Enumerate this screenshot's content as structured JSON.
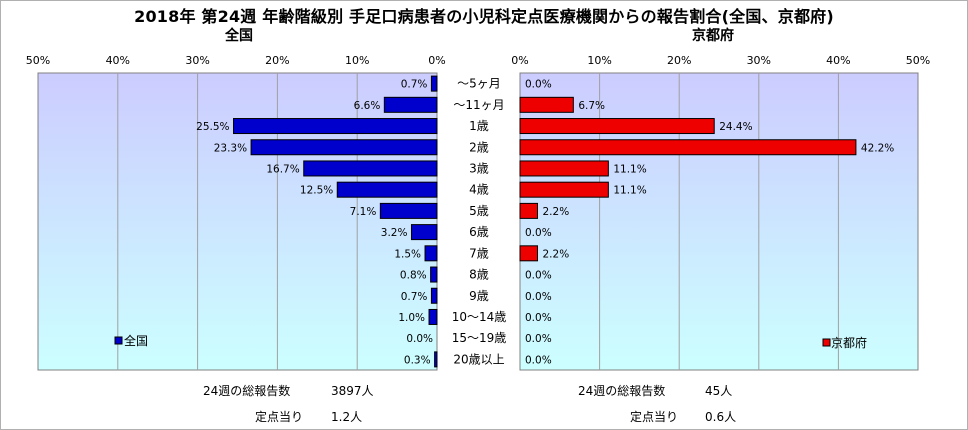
{
  "title": "2018年 第24週 年齢階級別 手足口病患者の小児科定点医療機関からの報告割合(全国、京都府)",
  "colors": {
    "national": "#0000cc",
    "kyoto": "#ee0000",
    "bg_top": "#ccccff",
    "bg_bottom": "#ccffff"
  },
  "chart_data": {
    "type": "bar",
    "orientation": "horizontal",
    "layout": "back-to-back",
    "categories": [
      "～5ヶ月",
      "～11ヶ月",
      "1歳",
      "2歳",
      "3歳",
      "4歳",
      "5歳",
      "6歳",
      "7歳",
      "8歳",
      "9歳",
      "10～14歳",
      "15～19歳",
      "20歳以上"
    ],
    "panels": [
      {
        "subtitle": "全国",
        "legend": "全国",
        "legend_position": "bottom-left",
        "xlim": [
          0,
          50
        ],
        "ticks": [
          "0%",
          "10%",
          "20%",
          "30%",
          "40%",
          "50%"
        ],
        "values": [
          0.7,
          6.6,
          25.5,
          23.3,
          16.7,
          12.5,
          7.1,
          3.2,
          1.5,
          0.8,
          0.7,
          1.0,
          0.0,
          0.3
        ],
        "labels": [
          "0.7%",
          "6.6%",
          "25.5%",
          "23.3%",
          "16.7%",
          "12.5%",
          "7.1%",
          "3.2%",
          "1.5%",
          "0.8%",
          "0.7%",
          "1.0%",
          "0.0%",
          "0.3%"
        ]
      },
      {
        "subtitle": "京都府",
        "legend": "京都府",
        "legend_position": "bottom-right",
        "xlim": [
          0,
          50
        ],
        "ticks": [
          "0%",
          "10%",
          "20%",
          "30%",
          "40%",
          "50%"
        ],
        "values": [
          0.0,
          6.7,
          24.4,
          42.2,
          11.1,
          11.1,
          2.2,
          0.0,
          2.2,
          0.0,
          0.0,
          0.0,
          0.0,
          0.0
        ],
        "labels": [
          "0.0%",
          "6.7%",
          "24.4%",
          "42.2%",
          "11.1%",
          "11.1%",
          "2.2%",
          "0.0%",
          "2.2%",
          "0.0%",
          "0.0%",
          "0.0%",
          "0.0%",
          "0.0%"
        ]
      }
    ]
  },
  "footer": {
    "national": {
      "total_label": "24週の総報告数",
      "total_value": "3897人",
      "per_label": "定点当り",
      "per_value": "1.2人"
    },
    "kyoto": {
      "total_label": "24週の総報告数",
      "total_value": "45人",
      "per_label": "定点当り",
      "per_value": "0.6人"
    }
  }
}
